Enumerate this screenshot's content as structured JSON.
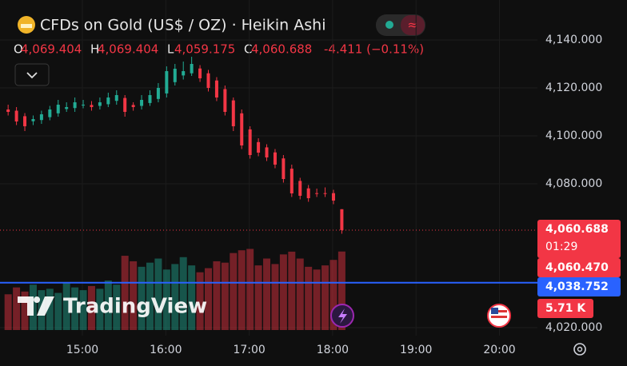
{
  "legend": {
    "symbol": "CFDs on Gold (US$ / OZ) · Heikin Ashi",
    "ohlc": [
      {
        "key": "O",
        "value": "4,069.404"
      },
      {
        "key": "H",
        "value": "4,069.404"
      },
      {
        "key": "L",
        "value": "4,059.175"
      },
      {
        "key": "C",
        "value": "4,060.688"
      }
    ],
    "change": "-4.411 (−0.11%)",
    "watermark": "TradingView"
  },
  "chart_data": {
    "type": "candlestick",
    "x": [
      14.11,
      14.21,
      14.31,
      14.41,
      14.51,
      14.61,
      14.71,
      14.81,
      14.91,
      15.01,
      15.11,
      15.21,
      15.31,
      15.41,
      15.51,
      15.61,
      15.71,
      15.81,
      15.91,
      16.01,
      16.11,
      16.21,
      16.31,
      16.41,
      16.51,
      16.61,
      16.71,
      16.81,
      16.91,
      17.01,
      17.11,
      17.21,
      17.31,
      17.41,
      17.51,
      17.61,
      17.71,
      17.81,
      17.91,
      18.01,
      18.11
    ],
    "open": [
      4111,
      4110.5,
      4108.2,
      4106.1,
      4106.6,
      4107.8,
      4109.4,
      4111.2,
      4111.6,
      4112.8,
      4112.9,
      4112.5,
      4113.2,
      4114.6,
      4115.8,
      4112.9,
      4112.5,
      4113.7,
      4115.4,
      4117.7,
      4122.4,
      4125.2,
      4126.1,
      4128.1,
      4126.1,
      4123.1,
      4119.5,
      4114.8,
      4109.4,
      4102.7,
      4097.4,
      4095.2,
      4093.1,
      4090.6,
      4086.3,
      4081.2,
      4078.1,
      4076.1,
      4076.1,
      4076.1,
      4069.404
    ],
    "high": [
      4113,
      4112,
      4109.5,
      4108.5,
      4110.5,
      4112.5,
      4115,
      4114,
      4116,
      4115,
      4114.5,
      4116,
      4118,
      4119,
      4117,
      4114,
      4117,
      4119,
      4122,
      4129,
      4130,
      4131,
      4133,
      4129.5,
      4127.5,
      4124.5,
      4121,
      4116,
      4111,
      4104,
      4099,
      4096.5,
      4094.5,
      4092,
      4088,
      4082.5,
      4079.5,
      4078,
      4078.5,
      4077.5,
      4069.404
    ],
    "low": [
      4108.5,
      4104.5,
      4102,
      4104.5,
      4105,
      4106.5,
      4108,
      4110,
      4110,
      4111.5,
      4110.5,
      4111,
      4112,
      4113,
      4108,
      4110.5,
      4111,
      4112.5,
      4114,
      4116,
      4121,
      4123.5,
      4125,
      4122.5,
      4118.5,
      4114.5,
      4108.5,
      4102,
      4094.5,
      4090.5,
      4091.5,
      4089.5,
      4086.5,
      4080.5,
      4074.5,
      4073.5,
      4072.5,
      4074.5,
      4074.5,
      4071.5,
      4059.175
    ],
    "close": [
      4110,
      4106,
      4104,
      4107,
      4109,
      4111,
      4113,
      4112,
      4114,
      4113,
      4112,
      4114,
      4116,
      4117,
      4110,
      4112,
      4115,
      4117,
      4120,
      4127,
      4128,
      4127,
      4130,
      4124,
      4120,
      4116,
      4110,
      4104,
      4096,
      4092,
      4093,
      4091,
      4088,
      4082,
      4076,
      4075,
      4074,
      4076,
      4076,
      4073,
      4060.688
    ],
    "volume": [
      2.6,
      3.1,
      2.8,
      3.3,
      2.9,
      3.0,
      2.7,
      3.4,
      3.1,
      2.9,
      3.2,
      3.0,
      3.6,
      3.3,
      5.4,
      5.0,
      4.6,
      4.9,
      5.2,
      4.4,
      4.8,
      5.3,
      4.7,
      4.2,
      4.5,
      5.0,
      4.9,
      5.6,
      5.8,
      5.9,
      4.7,
      5.2,
      4.8,
      5.5,
      5.7,
      5.2,
      4.6,
      4.4,
      4.7,
      5.1,
      5.71
    ],
    "volume_label": "5.71 K",
    "up_color": "#22ab94",
    "down_color": "#f23645",
    "xlim": [
      14.0125,
      20.455
    ],
    "xticks": [
      {
        "value": 15,
        "label": "15:00"
      },
      {
        "value": 16,
        "label": "16:00"
      },
      {
        "value": 17,
        "label": "17:00"
      },
      {
        "value": 18,
        "label": "18:00"
      },
      {
        "value": 19,
        "label": "19:00"
      },
      {
        "value": 20,
        "label": "20:00"
      }
    ],
    "ylim": [
      4016.67,
      4156.67
    ],
    "yticks": [
      {
        "value": 4140,
        "label": "4,140.000"
      },
      {
        "value": 4120,
        "label": "4,120.000"
      },
      {
        "value": 4100,
        "label": "4,100.000"
      },
      {
        "value": 4080,
        "label": "4,080.000"
      },
      {
        "value": 4020,
        "label": "4,020.000"
      }
    ],
    "vlim": [
      0,
      24
    ],
    "grid": true,
    "price_labels": [
      {
        "value": 4060.688,
        "label": "4,060.688",
        "timer": "01:29",
        "color": "#f23645"
      },
      {
        "value": 4060.47,
        "label": "4,060.470",
        "color": "#f23645"
      },
      {
        "value": 4038.752,
        "label": "4,038.752",
        "color": "#2962ff"
      }
    ]
  }
}
